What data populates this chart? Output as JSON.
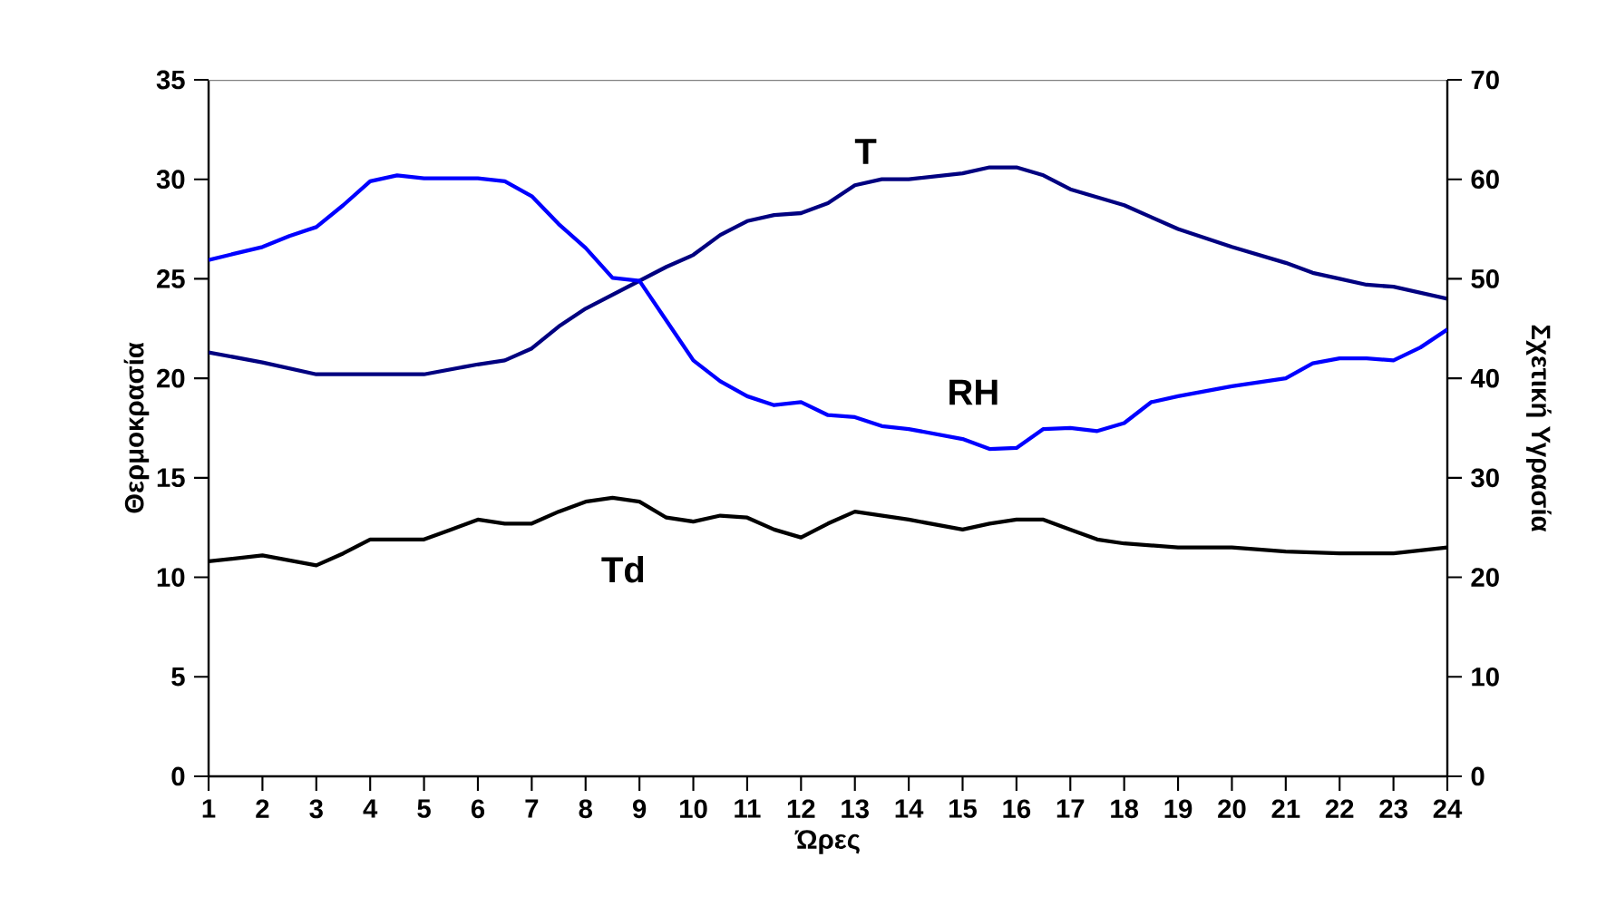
{
  "chart_data": {
    "type": "line",
    "xlabel": "Ώρες",
    "ylabel": "Θερμοκρασία",
    "y2label": "Σχετική Υγρασία",
    "xlim": [
      1,
      24
    ],
    "xticks": [
      1,
      2,
      3,
      4,
      5,
      6,
      7,
      8,
      9,
      10,
      11,
      12,
      13,
      14,
      15,
      16,
      17,
      18,
      19,
      20,
      21,
      22,
      23,
      24
    ],
    "ylim": [
      0,
      35
    ],
    "yticks": [
      0,
      5,
      10,
      15,
      20,
      25,
      30,
      35
    ],
    "y2lim": [
      0,
      70
    ],
    "y2ticks": [
      0,
      10,
      20,
      30,
      40,
      50,
      60,
      70
    ],
    "grid": false,
    "marker": "none",
    "series": [
      {
        "name": "T",
        "color": "#000080",
        "x": [
          1,
          2,
          3,
          4,
          5,
          6,
          6.5,
          7,
          7.5,
          8,
          8.5,
          9,
          9.5,
          10,
          10.5,
          11,
          11.5,
          12,
          12.5,
          13,
          13.5,
          14,
          15,
          15.5,
          16,
          16.5,
          17,
          17.5,
          18,
          18.5,
          19,
          20,
          21,
          21.5,
          22,
          22.5,
          23,
          24
        ],
        "values": [
          21.3,
          20.8,
          20.2,
          20.2,
          20.2,
          20.7,
          20.9,
          21.5,
          22.6,
          23.5,
          24.2,
          24.9,
          25.6,
          26.2,
          27.2,
          27.9,
          28.2,
          28.3,
          28.8,
          29.7,
          30.0,
          30.0,
          30.3,
          30.6,
          30.6,
          30.2,
          29.5,
          29.1,
          28.7,
          28.1,
          27.5,
          26.6,
          25.8,
          25.3,
          25.0,
          24.7,
          24.6,
          24.0
        ]
      },
      {
        "name": "RH",
        "color": "#0000ff",
        "axis": "y2",
        "x": [
          1,
          2,
          2.5,
          3,
          3.5,
          4,
          4.5,
          5,
          6,
          6.5,
          7,
          7.5,
          8,
          8.5,
          9,
          9.5,
          10,
          10.5,
          11,
          11.5,
          12,
          12.5,
          13,
          13.5,
          14,
          15,
          15.5,
          16,
          16.5,
          17,
          17.5,
          18,
          18.5,
          19,
          20,
          21,
          21.5,
          22,
          22.5,
          23,
          23.5,
          24
        ],
        "values": [
          51.9,
          53.2,
          54.3,
          55.2,
          57.4,
          59.8,
          60.4,
          60.1,
          60.1,
          59.8,
          58.3,
          55.5,
          53.1,
          50.1,
          49.8,
          45.8,
          41.8,
          39.7,
          38.2,
          37.3,
          37.6,
          36.3,
          36.1,
          35.2,
          34.9,
          33.9,
          32.9,
          33.0,
          34.9,
          35.0,
          34.7,
          35.5,
          37.6,
          38.2,
          39.2,
          40.0,
          41.5,
          42.0,
          42.0,
          41.8,
          43.1,
          44.9
        ]
      },
      {
        "name": "Td",
        "color": "#000000",
        "x": [
          1,
          2,
          3,
          3.5,
          4,
          5,
          5.5,
          6,
          6.5,
          7,
          7.5,
          8,
          8.5,
          9,
          9.5,
          10,
          10.5,
          11,
          11.5,
          12,
          12.5,
          13,
          14,
          15,
          15.5,
          16,
          16.5,
          17,
          17.5,
          18,
          19,
          20,
          21,
          22,
          23,
          24
        ],
        "values": [
          10.8,
          11.1,
          10.6,
          11.2,
          11.9,
          11.9,
          12.4,
          12.9,
          12.7,
          12.7,
          13.3,
          13.8,
          14.0,
          13.8,
          13.0,
          12.8,
          13.1,
          13.0,
          12.4,
          12.0,
          12.7,
          13.3,
          12.9,
          12.4,
          12.7,
          12.9,
          12.9,
          12.4,
          11.9,
          11.7,
          11.5,
          11.5,
          11.3,
          11.2,
          11.2,
          11.5
        ]
      }
    ]
  }
}
